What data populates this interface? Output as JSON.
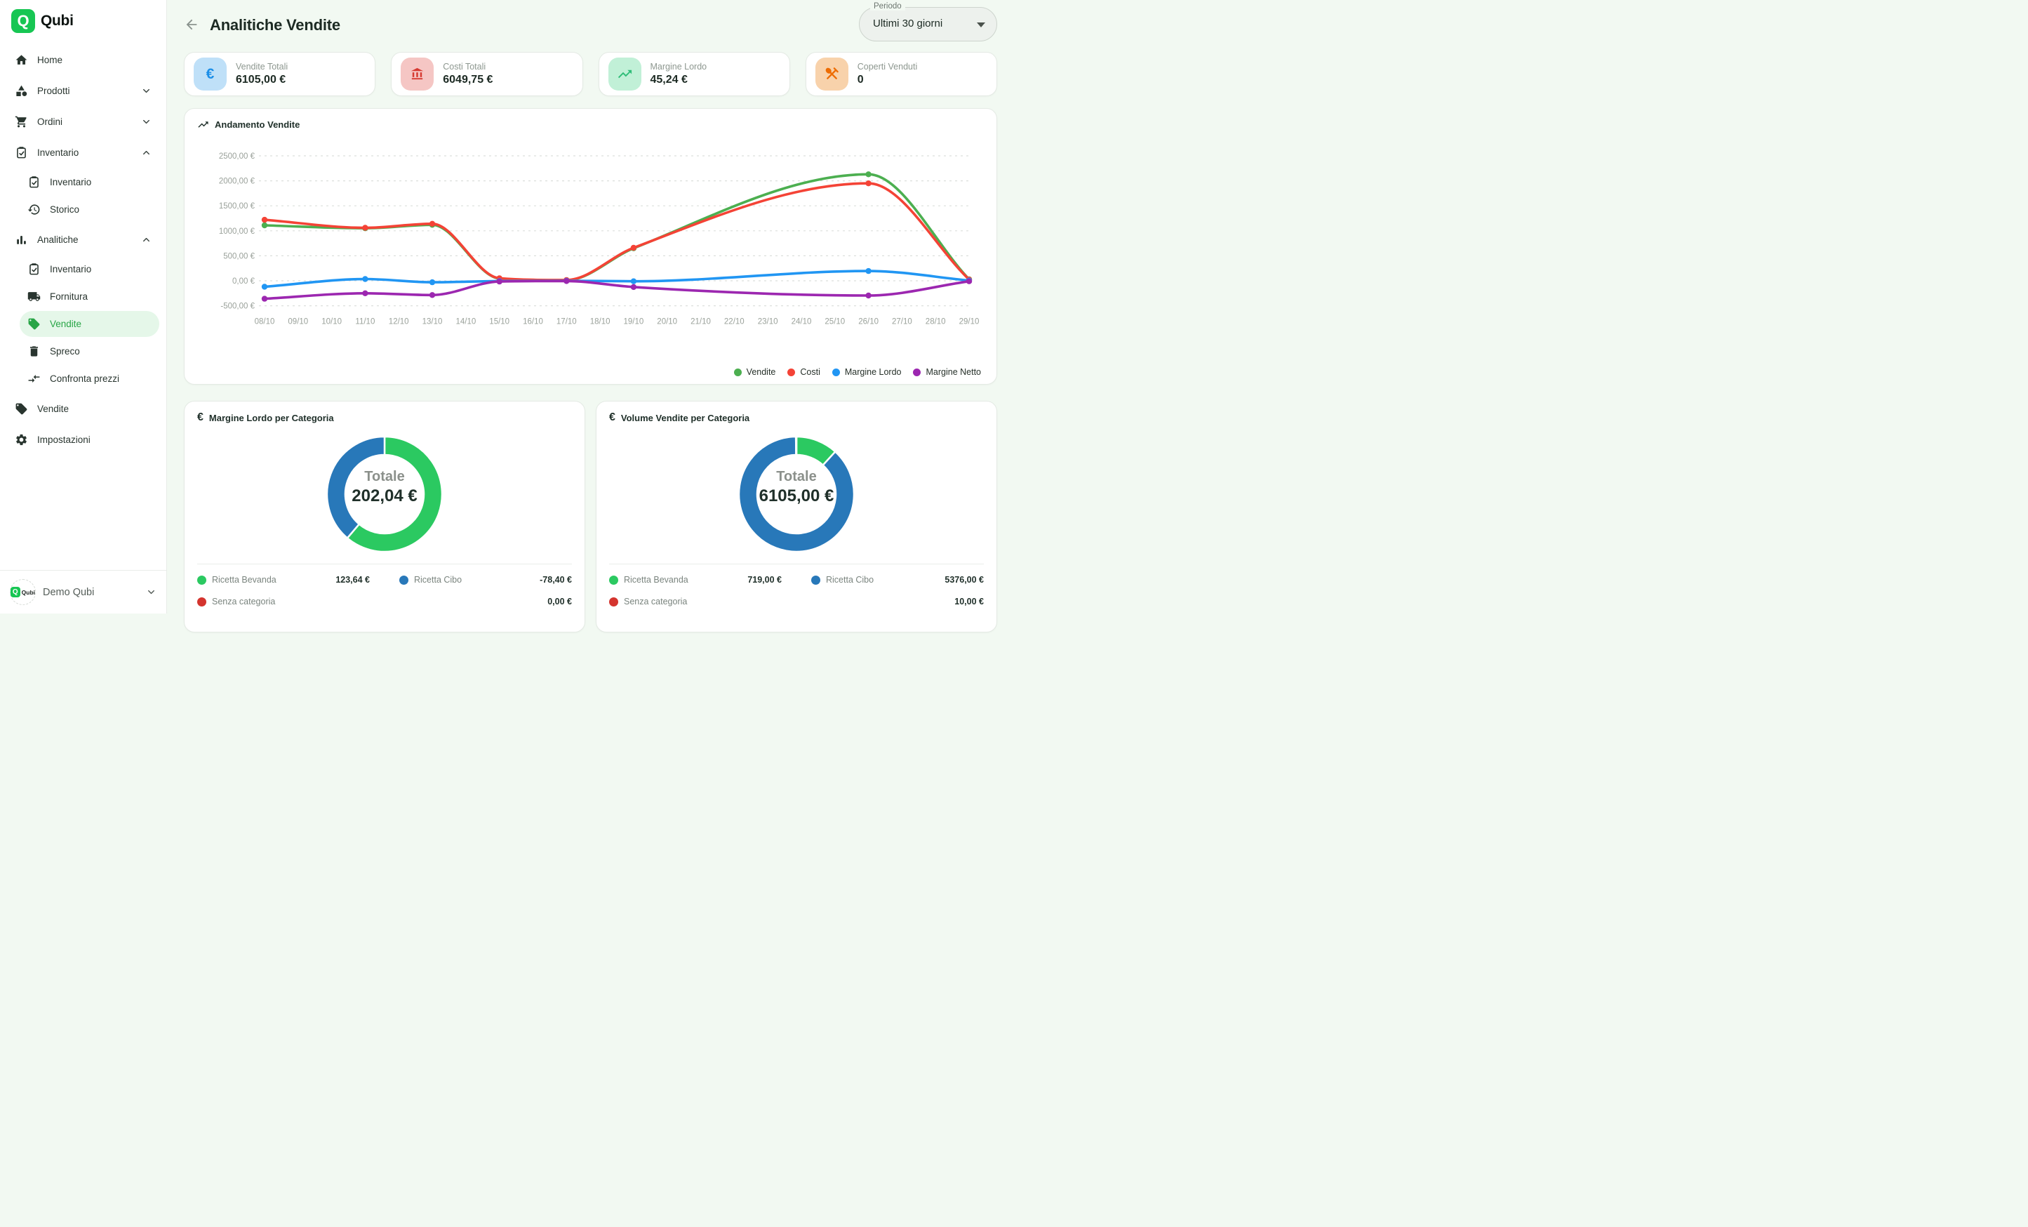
{
  "app": {
    "name": "Qubi"
  },
  "colors": {
    "brand_green": "#17c653",
    "active_item": "#28a546",
    "page_bg": "#f2f9f2",
    "kpi": [
      {
        "accent": "#1d8fe8",
        "bg": "#bfe0f8"
      },
      {
        "accent": "#d63a31",
        "bg": "#f5c6c4"
      },
      {
        "accent": "#2fbd78",
        "bg": "#c1f0d7"
      },
      {
        "accent": "#ed6c02",
        "bg": "#f8d2ab"
      }
    ]
  },
  "sidebar": {
    "items": [
      {
        "label": "Home",
        "icon": "home",
        "sub": false,
        "active": false,
        "chevron": null
      },
      {
        "label": "Prodotti",
        "icon": "category",
        "sub": false,
        "active": false,
        "chevron": "down"
      },
      {
        "label": "Ordini",
        "icon": "cart",
        "sub": false,
        "active": false,
        "chevron": "down"
      },
      {
        "label": "Inventario",
        "icon": "clipboard-check",
        "sub": false,
        "active": false,
        "chevron": "up"
      },
      {
        "label": "Inventario",
        "icon": "clipboard-check",
        "sub": true,
        "active": false,
        "chevron": null
      },
      {
        "label": "Storico",
        "icon": "history",
        "sub": true,
        "active": false,
        "chevron": null
      },
      {
        "label": "Analitiche",
        "icon": "bar-chart",
        "sub": false,
        "active": false,
        "chevron": "up"
      },
      {
        "label": "Inventario",
        "icon": "clipboard-check",
        "sub": true,
        "active": false,
        "chevron": null
      },
      {
        "label": "Fornitura",
        "icon": "truck",
        "sub": true,
        "active": false,
        "chevron": null
      },
      {
        "label": "Vendite",
        "icon": "tag",
        "sub": true,
        "active": true,
        "chevron": null
      },
      {
        "label": "Spreco",
        "icon": "trash",
        "sub": true,
        "active": false,
        "chevron": null
      },
      {
        "label": "Confronta prezzi",
        "icon": "compare",
        "sub": true,
        "active": false,
        "chevron": null
      },
      {
        "label": "Vendite",
        "icon": "tag",
        "sub": false,
        "active": false,
        "chevron": null
      },
      {
        "label": "Impostazioni",
        "icon": "gear",
        "sub": false,
        "active": false,
        "chevron": null
      }
    ],
    "footer_label": "Demo Qubi"
  },
  "header": {
    "title": "Analitiche Vendite",
    "period_label": "Periodo",
    "period_value": "Ultimi 30 giorni"
  },
  "kpis": [
    {
      "label": "Vendite Totali",
      "value": "6105,00 €",
      "icon": "euro"
    },
    {
      "label": "Costi Totali",
      "value": "6049,75 €",
      "icon": "bank"
    },
    {
      "label": "Margine Lordo",
      "value": "45,24 €",
      "icon": "trending-up"
    },
    {
      "label": "Coperti Venduti",
      "value": "0",
      "icon": "utensils"
    }
  ],
  "chart_data": [
    {
      "type": "line",
      "title": "Andamento Vendite",
      "x_labels": [
        "08/10",
        "09/10",
        "10/10",
        "11/10",
        "12/10",
        "13/10",
        "14/10",
        "15/10",
        "16/10",
        "17/10",
        "18/10",
        "19/10",
        "20/10",
        "21/10",
        "22/10",
        "23/10",
        "24/10",
        "25/10",
        "26/10",
        "27/10",
        "28/10",
        "29/10"
      ],
      "point_dates": [
        "08/10",
        "11/10",
        "13/10",
        "15/10",
        "17/10",
        "19/10",
        "26/10",
        "29/10"
      ],
      "y_ticks": [
        "2500,00 €",
        "2000,00 €",
        "1500,00 €",
        "1000,00 €",
        "500,00 €",
        "0,00 €",
        "-500,00 €"
      ],
      "ylim": [
        -500,
        2500
      ],
      "grid": "dashed-horizontal",
      "legend_position": "bottom-right",
      "series": [
        {
          "name": "Vendite",
          "color": "#4caf50",
          "values": [
            1110,
            1050,
            1120,
            45,
            10,
            650,
            2130,
            30
          ]
        },
        {
          "name": "Costi",
          "color": "#f44336",
          "values": [
            1220,
            1060,
            1140,
            50,
            15,
            660,
            1950,
            25
          ]
        },
        {
          "name": "Margine Lordo",
          "color": "#2196f3",
          "values": [
            -120,
            35,
            -30,
            -5,
            0,
            -10,
            195,
            5
          ]
        },
        {
          "name": "Margine Netto",
          "color": "#9c27b0",
          "values": [
            -360,
            -250,
            -285,
            -15,
            -5,
            -125,
            -295,
            -10
          ]
        }
      ]
    },
    {
      "type": "pie",
      "title": "Margine Lordo per Categoria",
      "center_label": "Totale",
      "center_value": "202,04 €",
      "slices": [
        {
          "label": "Ricetta Bevanda",
          "value": 123.64,
          "value_text": "123,64 €",
          "color": "#2bc961"
        },
        {
          "label": "Ricetta Cibo",
          "value": -78.4,
          "value_text": "-78,40 €",
          "color": "#2878b9"
        },
        {
          "label": "Senza categoria",
          "value": 0.0,
          "value_text": "0,00 €",
          "color": "#d4342e"
        }
      ]
    },
    {
      "type": "pie",
      "title": "Volume Vendite per Categoria",
      "center_label": "Totale",
      "center_value": "6105,00 €",
      "slices": [
        {
          "label": "Ricetta Bevanda",
          "value": 719.0,
          "value_text": "719,00 €",
          "color": "#2bc961"
        },
        {
          "label": "Ricetta Cibo",
          "value": 5376.0,
          "value_text": "5376,00 €",
          "color": "#2878b9"
        },
        {
          "label": "Senza categoria",
          "value": 10.0,
          "value_text": "10,00 €",
          "color": "#d4342e"
        }
      ]
    }
  ]
}
